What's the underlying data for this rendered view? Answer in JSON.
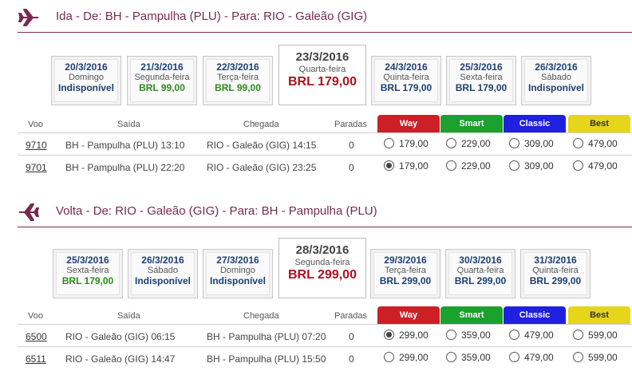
{
  "outbound": {
    "title": "Ida - De: BH - Pampulha (PLU) - Para: RIO - Galeão (GIG)",
    "dates": [
      {
        "date": "20/3/2016",
        "weekday": "Domingo",
        "price": "Indisponível",
        "style": "blue"
      },
      {
        "date": "21/3/2016",
        "weekday": "Segunda-feira",
        "price": "BRL 99,00",
        "style": "green"
      },
      {
        "date": "22/3/2016",
        "weekday": "Terça-feira",
        "price": "BRL 99,00",
        "style": "green"
      },
      {
        "date": "23/3/2016",
        "weekday": "Quarta-feira",
        "price": "BRL 179,00",
        "style": "selected"
      },
      {
        "date": "24/3/2016",
        "weekday": "Quinta-feira",
        "price": "BRL 179,00",
        "style": "blue"
      },
      {
        "date": "25/3/2016",
        "weekday": "Sexta-feira",
        "price": "BRL 179,00",
        "style": "blue"
      },
      {
        "date": "26/3/2016",
        "weekday": "Sábado",
        "price": "Indisponível",
        "style": "blue"
      }
    ],
    "headers": {
      "voo": "Voo",
      "saida": "Saída",
      "chegada": "Chegada",
      "paradas": "Paradas",
      "way": "Way",
      "smart": "Smart",
      "classic": "Classic",
      "best": "Best"
    },
    "flights": [
      {
        "number": "9710",
        "departure": "BH - Pampulha (PLU) 13:10",
        "arrival": "RIO - Galeão (GIG) 14:15",
        "stops": "0",
        "way": "179,00",
        "smart": "229,00",
        "classic": "309,00",
        "best": "479,00",
        "selected": false
      },
      {
        "number": "9701",
        "departure": "BH - Pampulha (PLU) 22:20",
        "arrival": "RIO - Galeão (GIG) 23:25",
        "stops": "0",
        "way": "179,00",
        "smart": "229,00",
        "classic": "309,00",
        "best": "479,00",
        "selected": true
      }
    ]
  },
  "return": {
    "title": "Volta - De: RIO - Galeão (GIG) - Para: BH - Pampulha (PLU)",
    "dates": [
      {
        "date": "25/3/2016",
        "weekday": "Sexta-feira",
        "price": "BRL 179,00",
        "style": "green"
      },
      {
        "date": "26/3/2016",
        "weekday": "Sábado",
        "price": "Indisponível",
        "style": "blue"
      },
      {
        "date": "27/3/2016",
        "weekday": "Domingo",
        "price": "Indisponível",
        "style": "blue"
      },
      {
        "date": "28/3/2016",
        "weekday": "Segunda-feira",
        "price": "BRL 299,00",
        "style": "selected"
      },
      {
        "date": "29/3/2016",
        "weekday": "Terça-feira",
        "price": "BRL 299,00",
        "style": "blue"
      },
      {
        "date": "30/3/2016",
        "weekday": "Quarta-feira",
        "price": "BRL 299,00",
        "style": "blue"
      },
      {
        "date": "31/3/2016",
        "weekday": "Quinta-feira",
        "price": "BRL 299,00",
        "style": "blue"
      }
    ],
    "headers": {
      "voo": "Voo",
      "saida": "Saída",
      "chegada": "Chegada",
      "paradas": "Paradas",
      "way": "Way",
      "smart": "Smart",
      "classic": "Classic",
      "best": "Best"
    },
    "flights": [
      {
        "number": "6500",
        "departure": "RIO - Galeão (GIG) 06:15",
        "arrival": "BH - Pampulha (PLU) 07:20",
        "stops": "0",
        "way": "299,00",
        "smart": "359,00",
        "classic": "479,00",
        "best": "599,00",
        "selected": true
      },
      {
        "number": "6511",
        "departure": "RIO - Galeão (GIG) 14:47",
        "arrival": "BH - Pampulha (PLU) 15:50",
        "stops": "0",
        "way": "299,00",
        "smart": "359,00",
        "classic": "479,00",
        "best": "599,00",
        "selected": false
      }
    ]
  },
  "colors": {
    "accent": "#7a2a4e",
    "way": "#cc1f26",
    "smart": "#1aa12e",
    "classic": "#2020e0",
    "best": "#e6d51a",
    "selected_price": "#b0101d"
  },
  "icons": {
    "section": "airplane-icon"
  }
}
